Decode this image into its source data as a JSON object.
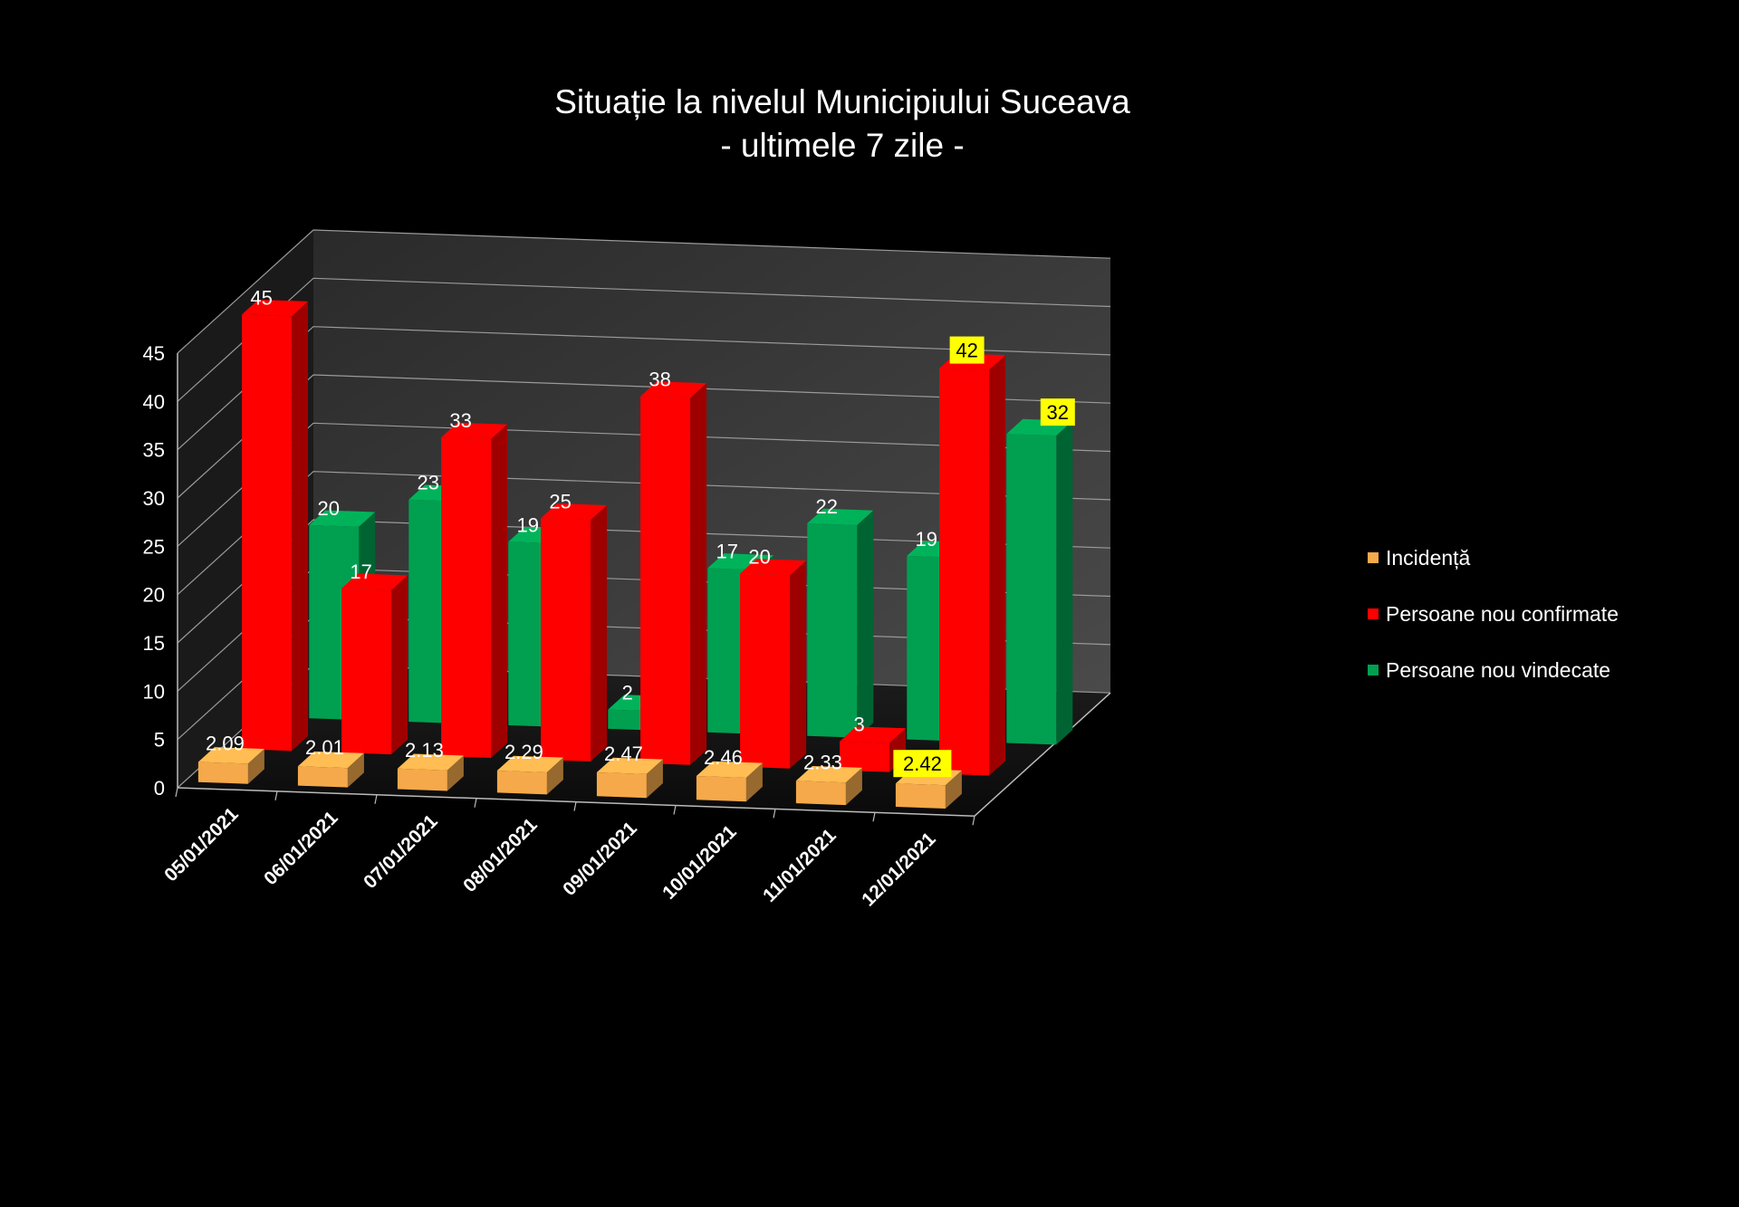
{
  "chart_data": {
    "type": "bar",
    "title": "Situație la nivelul Municipiului Suceava",
    "subtitle": "- ultimele 7 zile -",
    "categories": [
      "05/01/2021",
      "06/01/2021",
      "07/01/2021",
      "08/01/2021",
      "09/01/2021",
      "10/01/2021",
      "11/01/2021",
      "12/01/2021"
    ],
    "series": [
      {
        "name": "Incidență",
        "color": "#F5A94A",
        "values": [
          2.09,
          2.01,
          2.13,
          2.29,
          2.47,
          2.46,
          2.33,
          2.42
        ]
      },
      {
        "name": "Persoane nou confirmate",
        "color": "#FF0000",
        "values": [
          45,
          17,
          33,
          25,
          38,
          20,
          3,
          42
        ]
      },
      {
        "name": "Persoane nou vindecate",
        "color": "#00A050",
        "values": [
          20,
          23,
          19,
          2,
          17,
          22,
          19,
          32
        ]
      }
    ],
    "ylim": [
      0,
      45
    ],
    "yticks": [
      0,
      5,
      10,
      15,
      20,
      25,
      30,
      35,
      40,
      45
    ],
    "grid": true,
    "legend_position": "right",
    "highlighted_last_labels_color": "#FFFF00",
    "style": "3d-clustered-column"
  }
}
